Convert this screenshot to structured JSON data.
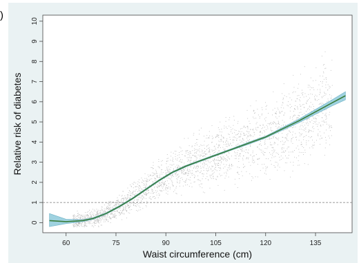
{
  "panel_label": ")",
  "chart_data": {
    "type": "line",
    "title": "",
    "xlabel": "Waist circumference (cm)",
    "ylabel": "Relative risk of diabetes",
    "xlim": [
      53,
      146
    ],
    "ylim": [
      -0.5,
      10.3
    ],
    "x_ticks": [
      60,
      75,
      90,
      105,
      120,
      135
    ],
    "y_ticks": [
      0,
      1,
      2,
      3,
      4,
      5,
      6,
      7,
      8,
      9,
      10
    ],
    "reference_line": {
      "y": 1,
      "style": "dashed"
    },
    "grid": false,
    "series": [
      {
        "kind": "spline-with-ci",
        "color": "#3a7d3a",
        "ci_color": "#7fc3d6",
        "x": [
          55,
          60,
          65,
          68,
          72,
          76,
          80,
          84,
          88,
          92,
          96,
          100,
          105,
          110,
          115,
          120,
          125,
          130,
          135,
          140,
          144
        ],
        "y": [
          0.1,
          0.05,
          0.1,
          0.2,
          0.45,
          0.8,
          1.2,
          1.65,
          2.1,
          2.5,
          2.8,
          3.05,
          3.35,
          3.65,
          3.95,
          4.25,
          4.65,
          5.05,
          5.5,
          5.95,
          6.3
        ],
        "ci_lower": [
          -0.2,
          -0.05,
          0.05,
          0.16,
          0.41,
          0.76,
          1.16,
          1.61,
          2.06,
          2.46,
          2.76,
          3.01,
          3.31,
          3.61,
          3.9,
          4.2,
          4.58,
          4.96,
          5.38,
          5.8,
          6.1
        ],
        "ci_upper": [
          0.45,
          0.17,
          0.15,
          0.24,
          0.49,
          0.84,
          1.24,
          1.69,
          2.14,
          2.54,
          2.84,
          3.09,
          3.39,
          3.69,
          4.0,
          4.3,
          4.72,
          5.14,
          5.62,
          6.1,
          6.5
        ]
      },
      {
        "kind": "scatter-cloud",
        "color": "#b8b8b8",
        "description_free": true,
        "x_range": [
          62,
          140
        ],
        "center_curve": "follows spline"
      }
    ]
  }
}
